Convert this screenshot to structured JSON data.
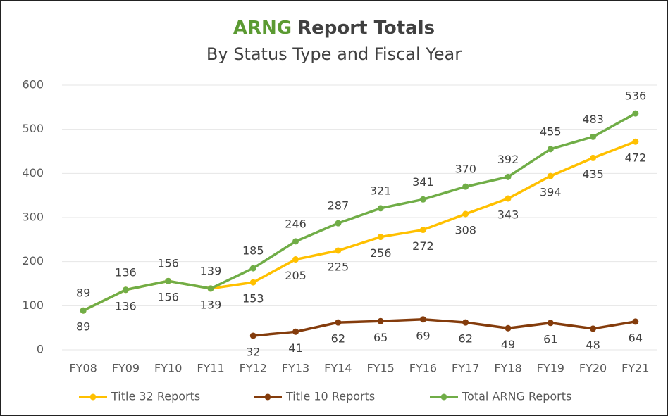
{
  "chart_data": {
    "type": "line",
    "title": [
      "ARNG",
      "Report Totals"
    ],
    "title_colors": [
      "#5b9a32",
      "#404040"
    ],
    "subtitle": "By Status Type and Fiscal Year",
    "categories": [
      "FY08",
      "FY09",
      "FY10",
      "FY11",
      "FY12",
      "FY13",
      "FY14",
      "FY15",
      "FY16",
      "FY17",
      "FY18",
      "FY19",
      "FY20",
      "FY21"
    ],
    "series": [
      {
        "name": "Title 32 Reports",
        "color": "#ffc000",
        "label_side": "below",
        "values": [
          89,
          136,
          156,
          139,
          153,
          205,
          225,
          256,
          272,
          308,
          343,
          394,
          435,
          472
        ]
      },
      {
        "name": "Title 10 Reports",
        "color": "#843c0c",
        "label_side": "below",
        "values": [
          null,
          null,
          null,
          null,
          32,
          41,
          62,
          65,
          69,
          62,
          49,
          61,
          48,
          64
        ]
      },
      {
        "name": "Total ARNG Reports",
        "color": "#70ad47",
        "label_side": "above",
        "values": [
          89,
          136,
          156,
          139,
          185,
          246,
          287,
          321,
          341,
          370,
          392,
          455,
          483,
          536
        ]
      }
    ],
    "ylim": [
      0,
      600
    ],
    "yticks": [
      0,
      100,
      200,
      300,
      400,
      500,
      600
    ],
    "grid": true,
    "legend": "bottom"
  }
}
